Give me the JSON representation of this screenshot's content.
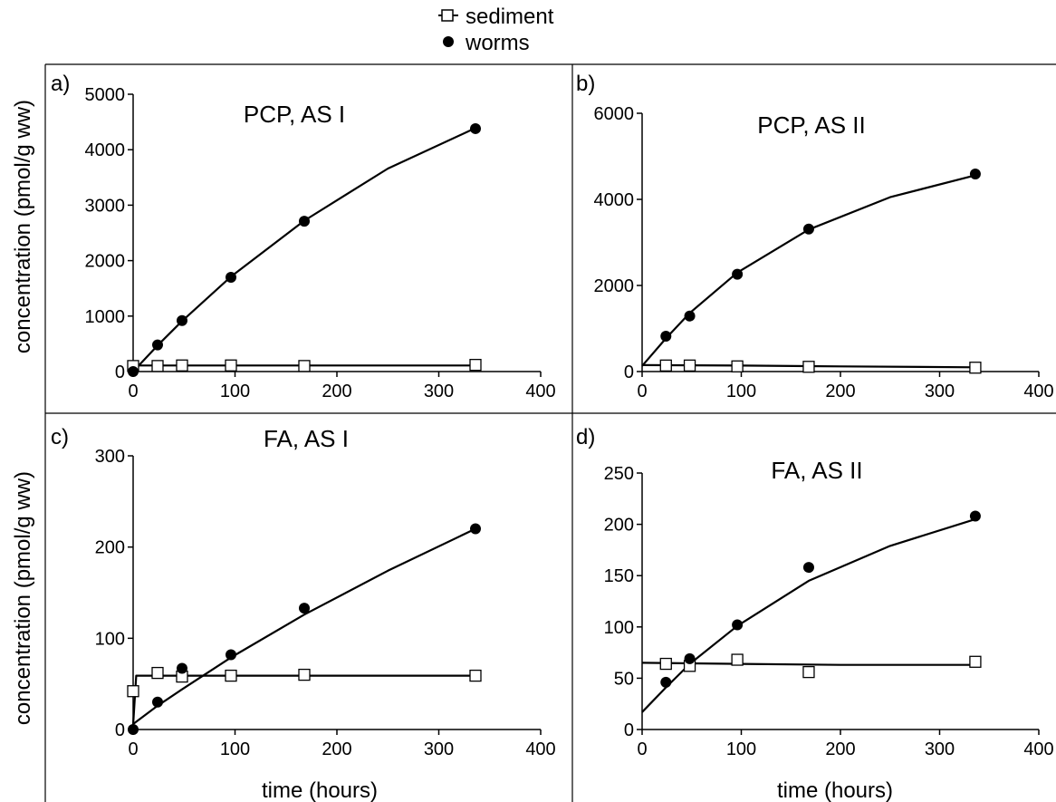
{
  "legend": {
    "position": "top-center",
    "entries": [
      {
        "label": "sediment",
        "marker": "open-square"
      },
      {
        "label": "worms",
        "marker": "filled-circle"
      }
    ]
  },
  "figure": {
    "ylabel": "concentration (pmol/g ww)",
    "xlabel": "time (hours)"
  },
  "chart_data": [
    {
      "type": "scatter",
      "panel_label": "a)",
      "title": "PCP, AS I",
      "xlabel": "",
      "ylabel": "concentration (pmol/g ww)",
      "xlim": [
        0,
        400
      ],
      "ylim": [
        0,
        5000
      ],
      "xticks": [
        0,
        100,
        200,
        300,
        400
      ],
      "yticks": [
        0,
        1000,
        2000,
        3000,
        4000,
        5000
      ],
      "grid": false,
      "series": [
        {
          "name": "sediment",
          "marker": "open-square",
          "points": [
            [
              0,
              100
            ],
            [
              24,
              100
            ],
            [
              48,
              110
            ],
            [
              96,
              110
            ],
            [
              168,
              100
            ],
            [
              336,
              120
            ]
          ],
          "fit": [
            [
              0,
              50
            ],
            [
              5,
              110
            ],
            [
              100,
              110
            ],
            [
              336,
              110
            ]
          ]
        },
        {
          "name": "worms",
          "marker": "filled-circle",
          "points": [
            [
              0,
              0
            ],
            [
              24,
              480
            ],
            [
              48,
              920
            ],
            [
              96,
              1700
            ],
            [
              168,
              2710
            ],
            [
              336,
              4380
            ]
          ],
          "fit": [
            [
              0,
              0
            ],
            [
              24,
              470
            ],
            [
              48,
              910
            ],
            [
              96,
              1710
            ],
            [
              168,
              2720
            ],
            [
              250,
              3660
            ],
            [
              336,
              4390
            ]
          ]
        }
      ]
    },
    {
      "type": "scatter",
      "panel_label": "b)",
      "title": "PCP, AS II",
      "xlabel": "",
      "ylabel": "",
      "xlim": [
        0,
        400
      ],
      "ylim": [
        0,
        6000
      ],
      "xticks": [
        0,
        100,
        200,
        300,
        400
      ],
      "yticks": [
        0,
        2000,
        4000,
        6000
      ],
      "grid": false,
      "series": [
        {
          "name": "sediment",
          "marker": "open-square",
          "points": [
            [
              24,
              140
            ],
            [
              48,
              140
            ],
            [
              96,
              120
            ],
            [
              168,
              110
            ],
            [
              336,
              90
            ]
          ],
          "fit": [
            [
              0,
              150
            ],
            [
              100,
              140
            ],
            [
              200,
              120
            ],
            [
              336,
              100
            ]
          ]
        },
        {
          "name": "worms",
          "marker": "filled-circle",
          "points": [
            [
              24,
              820
            ],
            [
              48,
              1290
            ],
            [
              96,
              2260
            ],
            [
              168,
              3310
            ],
            [
              336,
              4590
            ]
          ],
          "fit": [
            [
              0,
              130
            ],
            [
              24,
              770
            ],
            [
              48,
              1360
            ],
            [
              96,
              2300
            ],
            [
              168,
              3300
            ],
            [
              250,
              4050
            ],
            [
              336,
              4560
            ]
          ]
        }
      ]
    },
    {
      "type": "scatter",
      "panel_label": "c)",
      "title": "FA, AS I",
      "xlabel": "time (hours)",
      "ylabel": "concentration (pmol/g ww)",
      "xlim": [
        0,
        400
      ],
      "ylim": [
        0,
        300
      ],
      "xticks": [
        0,
        100,
        200,
        300,
        400
      ],
      "yticks": [
        0,
        100,
        200,
        300
      ],
      "grid": false,
      "series": [
        {
          "name": "sediment",
          "marker": "open-square",
          "points": [
            [
              0,
              42
            ],
            [
              24,
              62
            ],
            [
              48,
              58
            ],
            [
              96,
              59
            ],
            [
              168,
              60
            ],
            [
              336,
              59
            ]
          ],
          "fit": [
            [
              0,
              5
            ],
            [
              3,
              59
            ],
            [
              100,
              59
            ],
            [
              336,
              59
            ]
          ]
        },
        {
          "name": "worms",
          "marker": "filled-circle",
          "points": [
            [
              0,
              0
            ],
            [
              24,
              30
            ],
            [
              48,
              67
            ],
            [
              96,
              82
            ],
            [
              168,
              133
            ],
            [
              336,
              220
            ]
          ],
          "fit": [
            [
              0,
              6
            ],
            [
              24,
              26
            ],
            [
              48,
              44
            ],
            [
              96,
              79
            ],
            [
              168,
              126
            ],
            [
              250,
              174
            ],
            [
              336,
              220
            ]
          ]
        }
      ]
    },
    {
      "type": "scatter",
      "panel_label": "d)",
      "title": "FA, AS II",
      "xlabel": "time (hours)",
      "ylabel": "",
      "xlim": [
        0,
        400
      ],
      "ylim": [
        0,
        250
      ],
      "xticks": [
        0,
        100,
        200,
        300,
        400
      ],
      "yticks": [
        0,
        50,
        100,
        150,
        200,
        250
      ],
      "grid": false,
      "series": [
        {
          "name": "sediment",
          "marker": "open-square",
          "points": [
            [
              24,
              64
            ],
            [
              48,
              62
            ],
            [
              96,
              68
            ],
            [
              168,
              56
            ],
            [
              336,
              66
            ]
          ],
          "fit": [
            [
              0,
              65
            ],
            [
              100,
              64
            ],
            [
              200,
              63
            ],
            [
              336,
              63
            ]
          ]
        },
        {
          "name": "worms",
          "marker": "filled-circle",
          "points": [
            [
              24,
              46
            ],
            [
              48,
              69
            ],
            [
              96,
              102
            ],
            [
              168,
              158
            ],
            [
              336,
              208
            ]
          ],
          "fit": [
            [
              0,
              17
            ],
            [
              24,
              41
            ],
            [
              48,
              64
            ],
            [
              96,
              101
            ],
            [
              168,
              145
            ],
            [
              250,
              179
            ],
            [
              336,
              205
            ]
          ]
        }
      ]
    }
  ]
}
